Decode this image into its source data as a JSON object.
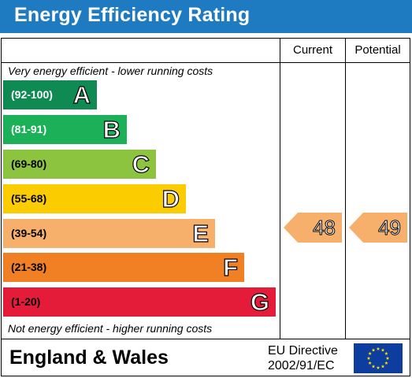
{
  "title": "Energy Efficiency Rating",
  "columns": {
    "current": "Current",
    "potential": "Potential"
  },
  "top_note": "Very energy efficient - lower running costs",
  "bottom_note": "Not energy efficient - higher running costs",
  "bands": [
    {
      "range": "(92-100)",
      "letter": "A",
      "color": "#0f8a52"
    },
    {
      "range": "(81-91)",
      "letter": "B",
      "color": "#1cb158"
    },
    {
      "range": "(69-80)",
      "letter": "C",
      "color": "#8cc43f"
    },
    {
      "range": "(55-68)",
      "letter": "D",
      "color": "#fbcd00"
    },
    {
      "range": "(39-54)",
      "letter": "E",
      "color": "#f7b06b"
    },
    {
      "range": "(21-38)",
      "letter": "F",
      "color": "#f18025"
    },
    {
      "range": "(1-20)",
      "letter": "G",
      "color": "#e41c3a"
    }
  ],
  "ratings": {
    "current": {
      "value": "48",
      "color": "#f7b06b"
    },
    "potential": {
      "value": "49",
      "color": "#f7b06b"
    }
  },
  "footer": {
    "country": "England & Wales",
    "directive_line1": "EU Directive",
    "directive_line2": "2002/91/EC"
  },
  "colors": {
    "title_bar": "#1f7bc1",
    "eu_flag_blue": "#0c3d9f",
    "eu_flag_stars": "#ffde00"
  },
  "icons": {
    "eu_flag": "eu-flag-icon"
  }
}
